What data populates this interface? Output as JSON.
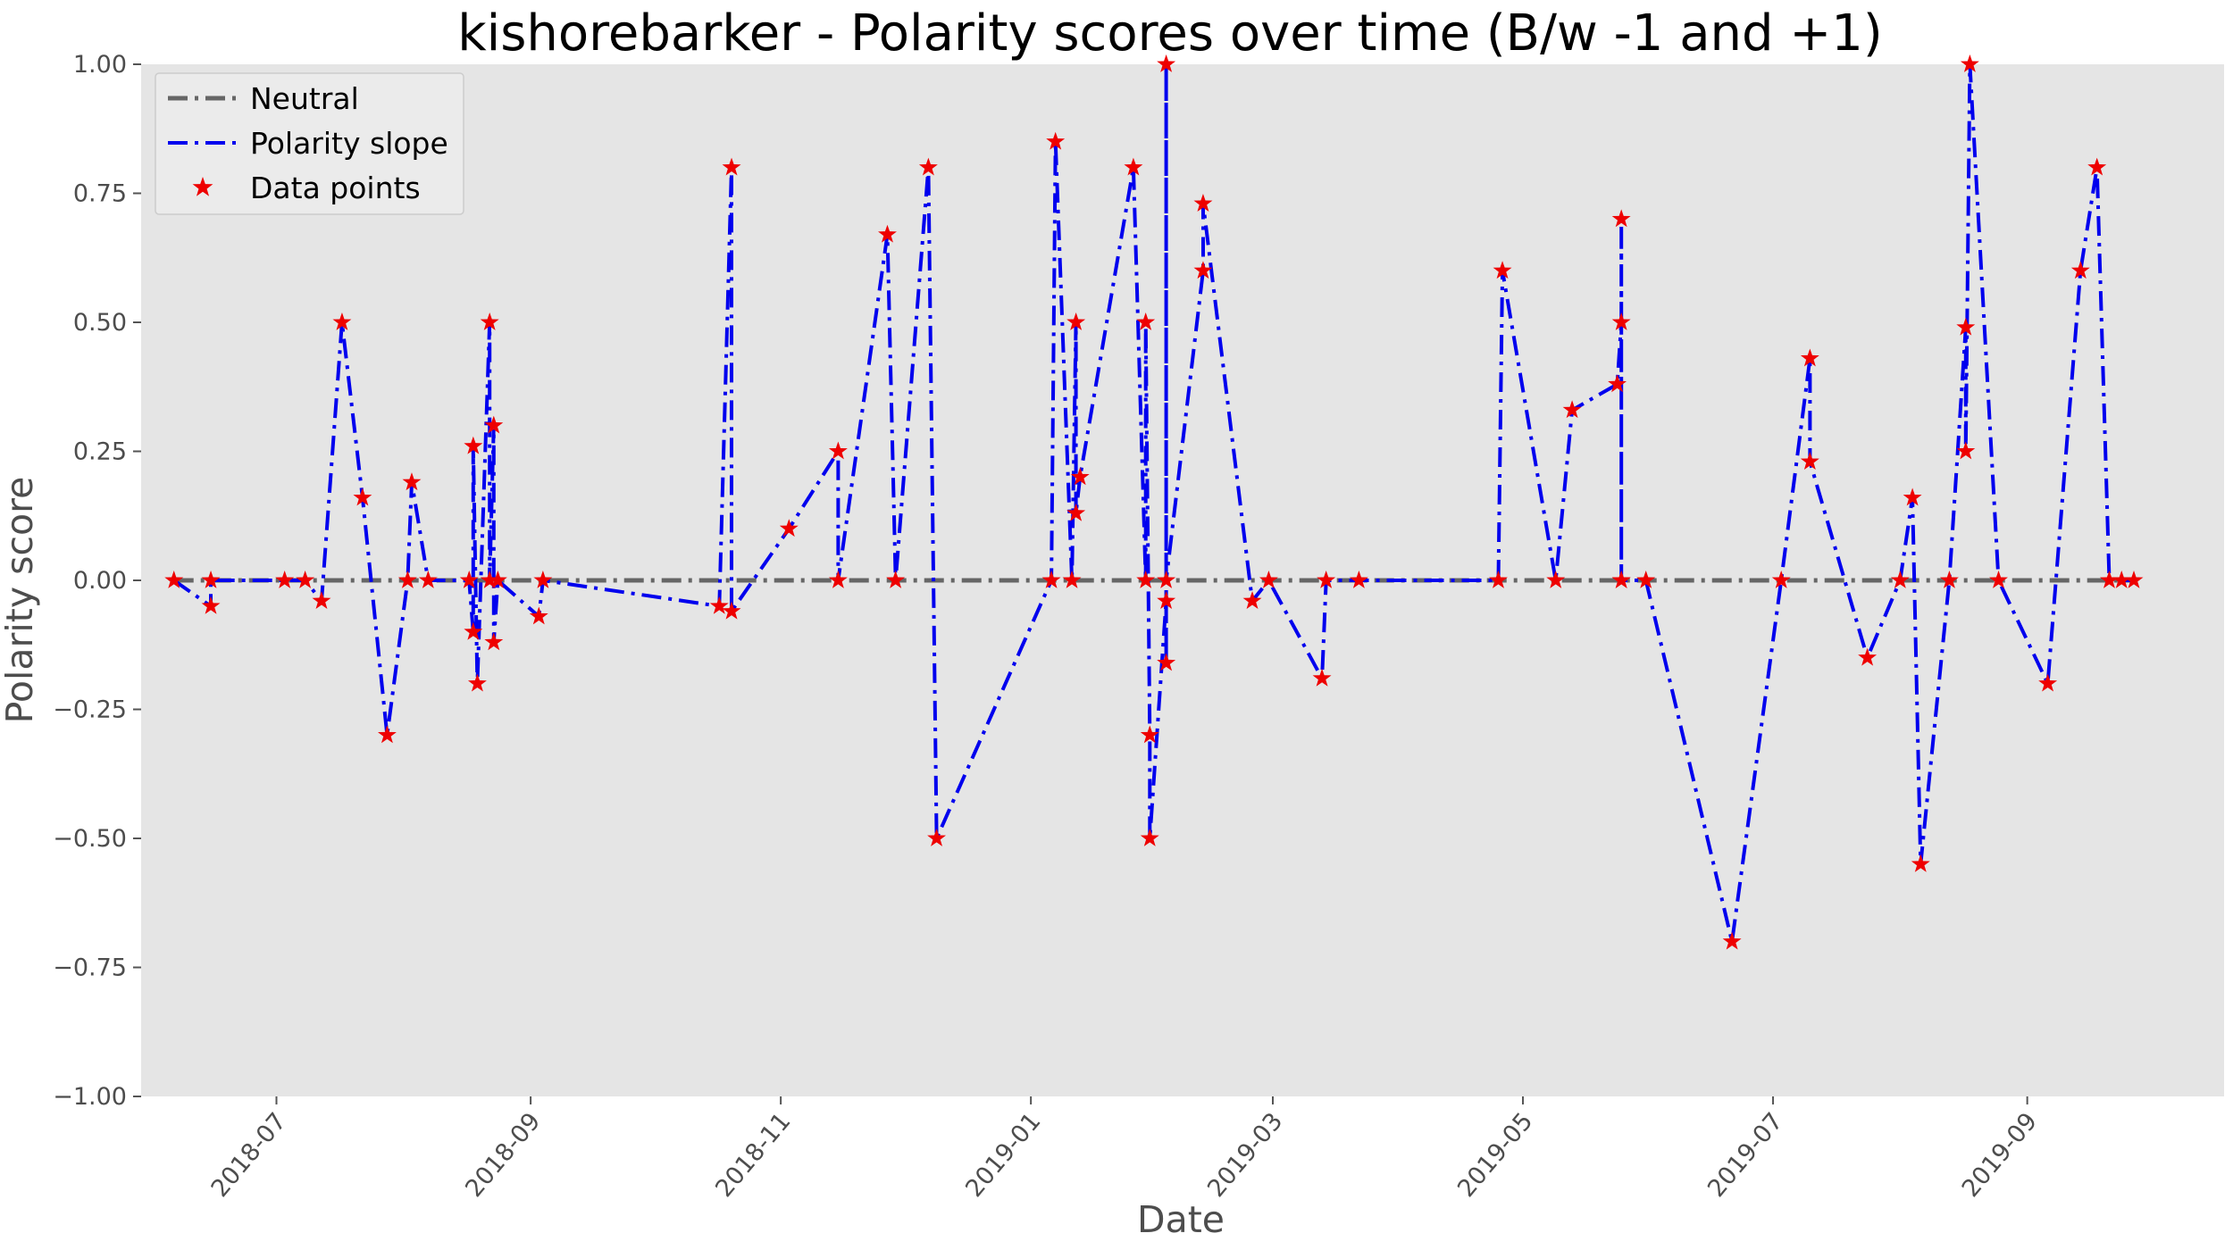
{
  "chart_data": {
    "type": "line",
    "title": "kishorebarker - Polarity scores over time (B/w -1 and +1)",
    "xlabel": "Date",
    "ylabel": "Polarity score",
    "xlim": [
      "2018-05-29",
      "2019-10-19"
    ],
    "ylim": [
      -1,
      1
    ],
    "xticks": [
      "2018-07",
      "2018-09",
      "2018-11",
      "2019-01",
      "2019-03",
      "2019-05",
      "2019-07",
      "2019-09"
    ],
    "yticks": [
      -1.0,
      -0.75,
      -0.5,
      -0.25,
      0.0,
      0.25,
      0.5,
      0.75,
      1.0
    ],
    "ytick_labels": [
      "−1.00",
      "−0.75",
      "−0.50",
      "−0.25",
      "0.00",
      "0.25",
      "0.50",
      "0.75",
      "1.00"
    ],
    "grid": false,
    "legend_position": "top-left",
    "colors": {
      "background": "#e5e5e5",
      "neutral": "#666666",
      "series": "#0000ee",
      "points": "#ee0000"
    },
    "legend": [
      "Neutral",
      "Polarity slope",
      "Data points"
    ],
    "neutral_value": 0,
    "series": [
      {
        "name": "Polarity slope",
        "x": [
          "2018-06-06",
          "2018-06-15",
          "2018-06-15",
          "2018-07-03",
          "2018-07-08",
          "2018-07-12",
          "2018-07-17",
          "2018-07-22",
          "2018-07-28",
          "2018-08-02",
          "2018-08-03",
          "2018-08-07",
          "2018-08-17",
          "2018-08-18",
          "2018-08-18",
          "2018-08-19",
          "2018-08-22",
          "2018-08-22",
          "2018-08-23",
          "2018-08-23",
          "2018-08-24",
          "2018-09-03",
          "2018-09-04",
          "2018-10-17",
          "2018-10-20",
          "2018-10-20",
          "2018-11-03",
          "2018-11-15",
          "2018-11-15",
          "2018-11-27",
          "2018-11-29",
          "2018-12-07",
          "2018-12-09",
          "2019-01-06",
          "2019-01-07",
          "2019-01-11",
          "2019-01-12",
          "2019-01-12",
          "2019-01-13",
          "2019-01-26",
          "2019-01-29",
          "2019-01-29",
          "2019-01-30",
          "2019-01-30",
          "2019-02-03",
          "2019-02-03",
          "2019-02-03",
          "2019-02-03",
          "2019-02-12",
          "2019-02-12",
          "2019-02-24",
          "2019-02-28",
          "2019-03-13",
          "2019-03-14",
          "2019-03-22",
          "2019-04-25",
          "2019-04-26",
          "2019-05-09",
          "2019-05-13",
          "2019-05-24",
          "2019-05-25",
          "2019-05-25",
          "2019-05-25",
          "2019-05-25",
          "2019-05-31",
          "2019-06-21",
          "2019-07-03",
          "2019-07-10",
          "2019-07-10",
          "2019-07-24",
          "2019-08-01",
          "2019-08-04",
          "2019-08-06",
          "2019-08-13",
          "2019-08-17",
          "2019-08-17",
          "2019-08-18",
          "2019-08-25",
          "2019-09-06",
          "2019-09-14",
          "2019-09-18",
          "2019-09-21",
          "2019-09-24",
          "2019-09-27"
        ],
        "y": [
          0,
          -0.05,
          0,
          0,
          0,
          -0.04,
          0.5,
          0.16,
          -0.3,
          0,
          0.19,
          0,
          0,
          -0.1,
          0.26,
          -0.2,
          0.5,
          0,
          0.3,
          -0.12,
          0,
          -0.07,
          0,
          -0.05,
          0.8,
          -0.06,
          0.1,
          0.25,
          0,
          0.67,
          0,
          0.8,
          -0.5,
          0,
          0.85,
          0,
          0.5,
          0.13,
          0.2,
          0.8,
          0,
          0.5,
          -0.3,
          -0.5,
          -0.04,
          -0.16,
          1.0,
          0,
          0.6,
          0.73,
          -0.04,
          0,
          -0.19,
          0,
          0,
          0,
          0.6,
          0,
          0.33,
          0.38,
          0.5,
          0,
          0.7,
          0,
          0,
          -0.7,
          0,
          0.43,
          0.23,
          -0.15,
          0,
          0.16,
          -0.55,
          0,
          0.49,
          0.25,
          1.0,
          0,
          -0.2,
          0.6,
          0.8,
          0,
          0,
          0
        ]
      }
    ]
  }
}
